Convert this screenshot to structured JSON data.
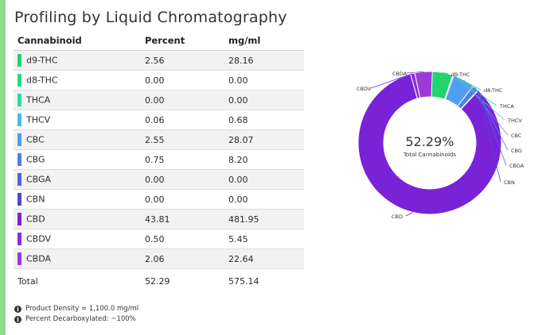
{
  "title": "Profiling by Liquid Chromatography",
  "table": {
    "headers": [
      "Cannabinoid",
      "Percent",
      "mg/ml"
    ],
    "rows": [
      {
        "name": "d9-THC",
        "percent": "2.56",
        "mgml": "28.16",
        "color": "#22d36e"
      },
      {
        "name": "d8-THC",
        "percent": "0.00",
        "mgml": "0.00",
        "color": "#27d884"
      },
      {
        "name": "THCA",
        "percent": "0.00",
        "mgml": "0.00",
        "color": "#2ddc9c"
      },
      {
        "name": "THCV",
        "percent": "0.06",
        "mgml": "0.68",
        "color": "#4ab8f0"
      },
      {
        "name": "CBC",
        "percent": "2.55",
        "mgml": "28.07",
        "color": "#4f9ef0"
      },
      {
        "name": "CBG",
        "percent": "0.75",
        "mgml": "8.20",
        "color": "#4d7fe8"
      },
      {
        "name": "CBGA",
        "percent": "0.00",
        "mgml": "0.00",
        "color": "#4a66e0"
      },
      {
        "name": "CBN",
        "percent": "0.00",
        "mgml": "0.00",
        "color": "#5147d6"
      },
      {
        "name": "CBD",
        "percent": "43.81",
        "mgml": "481.95",
        "color": "#7a22d8"
      },
      {
        "name": "CBDV",
        "percent": "0.50",
        "mgml": "5.45",
        "color": "#8a2ed8"
      },
      {
        "name": "CBDA",
        "percent": "2.06",
        "mgml": "22.64",
        "color": "#9a3ad8"
      }
    ],
    "total": {
      "label": "Total",
      "percent": "52.29",
      "mgml": "575.14"
    }
  },
  "notes": [
    "Product Density = 1,100.0 mg/ml",
    "Percent Decarboxylated:  ~100%"
  ],
  "chart_data": {
    "type": "pie",
    "center_value": "52.29%",
    "center_label": "Total Cannabinoids",
    "slices": [
      {
        "label": "d9-THC",
        "value": 2.56,
        "color": "#22d36e"
      },
      {
        "label": "d8-THC",
        "value": 0.0,
        "color": "#27d884"
      },
      {
        "label": "THCA",
        "value": 0.0,
        "color": "#2ddc9c"
      },
      {
        "label": "THCV",
        "value": 0.06,
        "color": "#4ab8f0"
      },
      {
        "label": "CBC",
        "value": 2.55,
        "color": "#4f9ef0"
      },
      {
        "label": "CBG",
        "value": 0.75,
        "color": "#4d7fe8"
      },
      {
        "label": "CBGA",
        "value": 0.0,
        "color": "#4a66e0"
      },
      {
        "label": "CBN",
        "value": 0.0,
        "color": "#5147d6"
      },
      {
        "label": "CBD",
        "value": 43.81,
        "color": "#7a22d8"
      },
      {
        "label": "CBDV",
        "value": 0.5,
        "color": "#8a2ed8"
      },
      {
        "label": "CBDA",
        "value": 2.06,
        "color": "#9a3ad8"
      }
    ]
  }
}
